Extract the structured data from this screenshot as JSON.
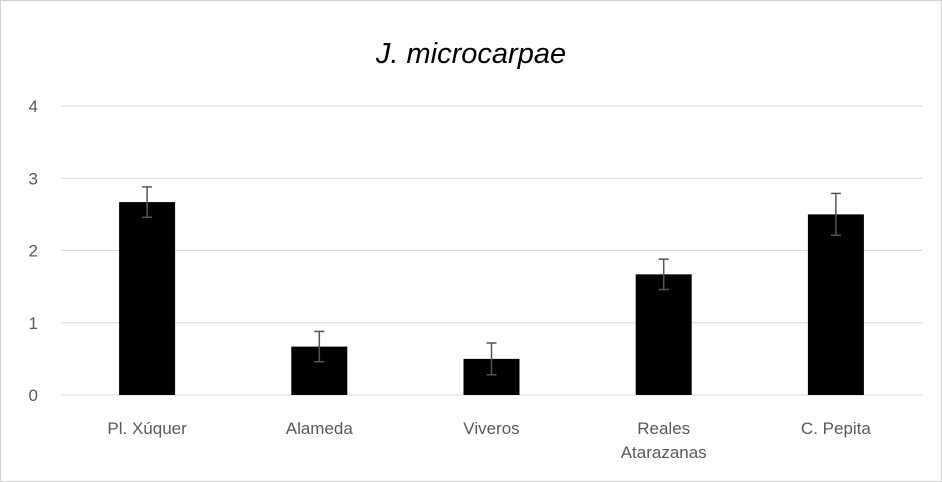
{
  "chart_data": {
    "type": "bar",
    "title": "J. microcarpae",
    "xlabel": "",
    "ylabel": "",
    "categories": [
      [
        "Pl. Xúquer"
      ],
      [
        "Alameda"
      ],
      [
        "Viveros"
      ],
      [
        "Reales",
        "Atarazanas"
      ],
      [
        "C. Pepita"
      ]
    ],
    "values": [
      2.67,
      0.67,
      0.5,
      1.67,
      2.5
    ],
    "errors": [
      0.21,
      0.21,
      0.22,
      0.21,
      0.29
    ],
    "ylim": [
      0,
      4
    ],
    "yticks": [
      0,
      1,
      2,
      3,
      4
    ],
    "grid": true,
    "legend": "none",
    "colors": {
      "bar": "#000000",
      "grid": "#d9d9d9",
      "error_bar": "#555555",
      "text": "#595959"
    }
  }
}
